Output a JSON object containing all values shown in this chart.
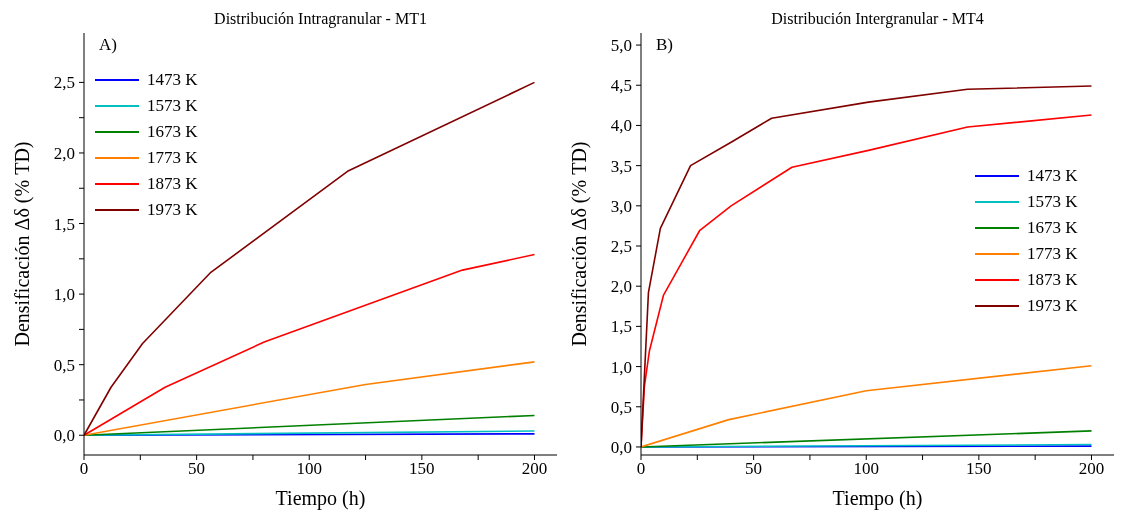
{
  "chart_data": [
    {
      "type": "line",
      "title": "Distribución Intragranular - MT1",
      "xlabel": "Tiempo (h)",
      "ylabel": "Densificación Δδ (% TD)",
      "annotations": [
        "A)"
      ],
      "legend": "top left",
      "grid": false,
      "marker": "none",
      "line_style": "solid",
      "xlim": [
        0,
        210
      ],
      "xticks": [
        0,
        {
          "value": 25,
          "label": null
        },
        50,
        {
          "value": 75,
          "label": null
        },
        100,
        {
          "value": 125,
          "label": null
        },
        150,
        {
          "value": 175,
          "label": null
        },
        200
      ],
      "ylim": [
        -0.14,
        2.85
      ],
      "yticks": [
        {
          "value": 0,
          "label": "0,0"
        },
        {
          "value": 0.25,
          "label": null
        },
        {
          "value": 0.5,
          "label": "0,5"
        },
        {
          "value": 0.75,
          "label": null
        },
        {
          "value": 1,
          "label": "1,0"
        },
        {
          "value": 1.25,
          "label": null
        },
        {
          "value": 1.5,
          "label": "1,5"
        },
        {
          "value": 1.75,
          "label": null
        },
        {
          "value": 2,
          "label": "2,0"
        },
        {
          "value": 2.25,
          "label": null
        },
        {
          "value": 2.5,
          "label": "2,5"
        }
      ],
      "series": [
        {
          "name": "1473 K",
          "color": "#0000ff",
          "x": [
            0,
            200
          ],
          "values": [
            0,
            0.01
          ]
        },
        {
          "name": "1573 K",
          "color": "#00bfbf",
          "x": [
            0,
            200
          ],
          "values": [
            0,
            0.03
          ]
        },
        {
          "name": "1673 K",
          "color": "#008000",
          "x": [
            0,
            200
          ],
          "values": [
            0,
            0.14
          ]
        },
        {
          "name": "1773 K",
          "color": "#ff8000",
          "x": [
            0,
            125,
            200
          ],
          "values": [
            0,
            0.36,
            0.52
          ]
        },
        {
          "name": "1873 K",
          "color": "#ff0000",
          "x": [
            0,
            36,
            80,
            168,
            200
          ],
          "values": [
            0,
            0.34,
            0.66,
            1.17,
            1.28
          ]
        },
        {
          "name": "1973 K",
          "color": "#800000",
          "x": [
            0,
            12,
            26,
            56,
            117,
            200
          ],
          "values": [
            0,
            0.34,
            0.65,
            1.15,
            1.87,
            2.5
          ]
        }
      ]
    },
    {
      "type": "line",
      "title": "Distribución Intergranular - MT4",
      "xlabel": "Tiempo (h)",
      "ylabel": "Densificación Δδ (% TD)",
      "annotations": [
        "B)"
      ],
      "legend": "right",
      "grid": false,
      "marker": "none",
      "line_style": "solid",
      "xlim": [
        0,
        210
      ],
      "xticks": [
        0,
        {
          "value": 25,
          "label": null
        },
        50,
        {
          "value": 75,
          "label": null
        },
        100,
        {
          "value": 125,
          "label": null
        },
        150,
        {
          "value": 175,
          "label": null
        },
        200
      ],
      "ylim": [
        -0.1,
        5.15
      ],
      "yticks": [
        {
          "value": 0,
          "label": "0,0"
        },
        {
          "value": 0.5,
          "label": "0,5"
        },
        {
          "value": 1,
          "label": "1,0"
        },
        {
          "value": 1.5,
          "label": "1,5"
        },
        {
          "value": 2,
          "label": "2,0"
        },
        {
          "value": 2.5,
          "label": "2,5"
        },
        {
          "value": 3,
          "label": "3,0"
        },
        {
          "value": 3.5,
          "label": "3,5"
        },
        {
          "value": 4,
          "label": "4,0"
        },
        {
          "value": 4.5,
          "label": "4,5"
        },
        {
          "value": 5,
          "label": "5,0"
        }
      ],
      "series": [
        {
          "name": "1473 K",
          "color": "#0000ff",
          "x": [
            0,
            200
          ],
          "values": [
            0,
            0.01
          ]
        },
        {
          "name": "1573 K",
          "color": "#00bfbf",
          "x": [
            0,
            200
          ],
          "values": [
            0,
            0.03
          ]
        },
        {
          "name": "1673 K",
          "color": "#008000",
          "x": [
            0,
            200
          ],
          "values": [
            0,
            0.2
          ]
        },
        {
          "name": "1773 K",
          "color": "#ff8000",
          "x": [
            0,
            39,
            100,
            200
          ],
          "values": [
            0,
            0.34,
            0.7,
            1.01
          ]
        },
        {
          "name": "1873 K",
          "color": "#ff0000",
          "x": [
            0,
            1.5,
            3.7,
            10,
            26,
            40,
            67,
            101,
            145,
            200
          ],
          "values": [
            0,
            0.75,
            1.19,
            1.89,
            2.69,
            3.0,
            3.48,
            3.69,
            3.98,
            4.13
          ]
        },
        {
          "name": "1973 K",
          "color": "#800000",
          "x": [
            0,
            3.3,
            8.6,
            22,
            40,
            58,
            101,
            145,
            200
          ],
          "values": [
            0,
            1.92,
            2.72,
            3.5,
            3.79,
            4.09,
            4.29,
            4.45,
            4.49
          ]
        }
      ]
    }
  ]
}
